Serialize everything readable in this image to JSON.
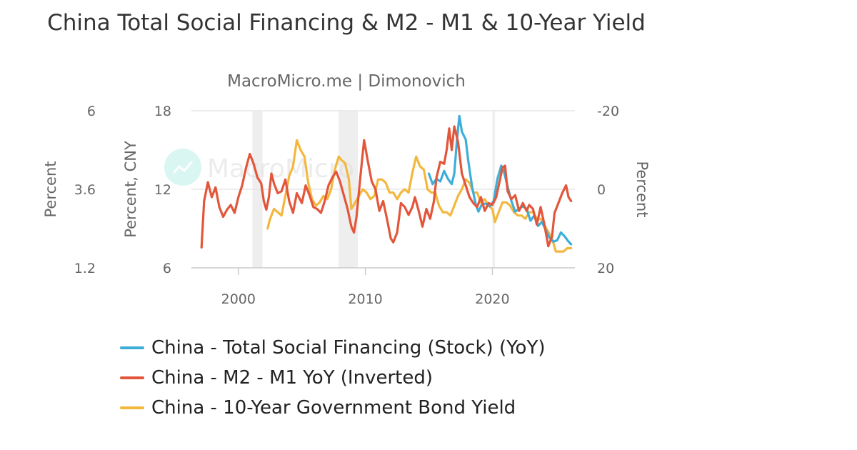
{
  "header": {
    "title": "China Total Social Financing & M2 - M1 & 10-Year Yield",
    "subtitle": "MacroMicro.me | Dimonovich"
  },
  "watermark": {
    "text": "MacroMicro",
    "icon": "chart-trend-icon"
  },
  "colors": {
    "tsf": "#3eaed8",
    "m2m1": "#e2573b",
    "bond": "#f4b73e",
    "grid": "#e6e6e6",
    "shade": "#eeeeee"
  },
  "chart_data": {
    "type": "line",
    "title": "China Total Social Financing & M2 - M1 & 10-Year Yield",
    "subtitle": "MacroMicro.me | Dimonovich",
    "x_range": [
      1996.3,
      2026.5
    ],
    "x_ticks": [
      2000,
      2010,
      2020
    ],
    "axes": {
      "left_outer": {
        "label": "Percent",
        "range": [
          1.2,
          6
        ],
        "ticks": [
          "6",
          "3.6",
          "1.2"
        ]
      },
      "left_inner": {
        "label": "Percent, CNY",
        "range": [
          6,
          18
        ],
        "ticks": [
          "18",
          "12",
          "6"
        ]
      },
      "right": {
        "label": "Percent",
        "range": [
          -20,
          20
        ],
        "inverted": true,
        "ticks": [
          "-20",
          "0",
          "20"
        ]
      }
    },
    "shaded_periods": [
      [
        2001.1,
        2001.9
      ],
      [
        2007.9,
        2009.4
      ],
      [
        2020.0,
        2020.2
      ]
    ],
    "legend_position": "bottom",
    "series": [
      {
        "name": "China - Total Social Financing (Stock) (YoY)",
        "axis": "left_inner",
        "points": [
          [
            2015.0,
            13.2
          ],
          [
            2015.3,
            12.4
          ],
          [
            2015.6,
            12.8
          ],
          [
            2015.9,
            12.6
          ],
          [
            2016.2,
            13.4
          ],
          [
            2016.5,
            12.8
          ],
          [
            2016.8,
            12.4
          ],
          [
            2017.0,
            13.2
          ],
          [
            2017.2,
            15.6
          ],
          [
            2017.4,
            17.6
          ],
          [
            2017.6,
            16.4
          ],
          [
            2017.9,
            15.8
          ],
          [
            2018.1,
            14.2
          ],
          [
            2018.4,
            12.2
          ],
          [
            2018.7,
            10.8
          ],
          [
            2018.9,
            10.3
          ],
          [
            2019.2,
            10.9
          ],
          [
            2019.5,
            10.9
          ],
          [
            2019.8,
            10.7
          ],
          [
            2020.1,
            11.1
          ],
          [
            2020.4,
            12.8
          ],
          [
            2020.7,
            13.8
          ],
          [
            2020.9,
            13.4
          ],
          [
            2021.2,
            12.2
          ],
          [
            2021.5,
            11.1
          ],
          [
            2021.8,
            10.3
          ],
          [
            2022.1,
            10.5
          ],
          [
            2022.4,
            10.7
          ],
          [
            2022.7,
            10.5
          ],
          [
            2023.0,
            9.6
          ],
          [
            2023.3,
            10.0
          ],
          [
            2023.6,
            9.2
          ],
          [
            2023.9,
            9.5
          ],
          [
            2024.2,
            8.9
          ],
          [
            2024.5,
            8.3
          ],
          [
            2024.8,
            8.0
          ],
          [
            2025.1,
            8.1
          ],
          [
            2025.4,
            8.7
          ],
          [
            2025.7,
            8.4
          ],
          [
            2026.0,
            8.0
          ],
          [
            2026.2,
            7.8
          ]
        ]
      },
      {
        "name": "China - M2 - M1 YoY (Inverted)",
        "axis": "right",
        "points": [
          [
            1997.1,
            14.8
          ],
          [
            1997.3,
            3.0
          ],
          [
            1997.6,
            -1.8
          ],
          [
            1997.9,
            2.0
          ],
          [
            1998.2,
            -0.5
          ],
          [
            1998.5,
            4.5
          ],
          [
            1998.8,
            7.0
          ],
          [
            1999.1,
            5.2
          ],
          [
            1999.4,
            4.0
          ],
          [
            1999.7,
            6.0
          ],
          [
            2000.0,
            2.0
          ],
          [
            2000.3,
            -1.0
          ],
          [
            2000.6,
            -5.5
          ],
          [
            2000.9,
            -9.0
          ],
          [
            2001.2,
            -6.5
          ],
          [
            2001.5,
            -3.0
          ],
          [
            2001.8,
            -1.5
          ],
          [
            2002.0,
            3.0
          ],
          [
            2002.2,
            5.2
          ],
          [
            2002.4,
            2.0
          ],
          [
            2002.6,
            -4.0
          ],
          [
            2002.8,
            -1.5
          ],
          [
            2003.1,
            1.0
          ],
          [
            2003.4,
            0.5
          ],
          [
            2003.7,
            -2.5
          ],
          [
            2004.0,
            3.0
          ],
          [
            2004.3,
            6.0
          ],
          [
            2004.6,
            1.0
          ],
          [
            2005.0,
            3.5
          ],
          [
            2005.3,
            -1.0
          ],
          [
            2005.6,
            1.5
          ],
          [
            2005.9,
            4.5
          ],
          [
            2006.2,
            5.0
          ],
          [
            2006.5,
            6.0
          ],
          [
            2006.8,
            3.0
          ],
          [
            2007.1,
            -1.0
          ],
          [
            2007.4,
            -3.0
          ],
          [
            2007.7,
            -4.5
          ],
          [
            2008.0,
            -2.0
          ],
          [
            2008.3,
            1.5
          ],
          [
            2008.6,
            5.0
          ],
          [
            2008.9,
            9.5
          ],
          [
            2009.1,
            11.0
          ],
          [
            2009.3,
            7.0
          ],
          [
            2009.6,
            -3.0
          ],
          [
            2009.9,
            -12.5
          ],
          [
            2010.2,
            -7.0
          ],
          [
            2010.5,
            -2.0
          ],
          [
            2010.8,
            0.0
          ],
          [
            2011.1,
            5.5
          ],
          [
            2011.4,
            3.0
          ],
          [
            2011.7,
            7.5
          ],
          [
            2012.0,
            12.5
          ],
          [
            2012.2,
            13.5
          ],
          [
            2012.5,
            11.0
          ],
          [
            2012.8,
            3.5
          ],
          [
            2013.1,
            4.5
          ],
          [
            2013.4,
            6.5
          ],
          [
            2013.7,
            4.5
          ],
          [
            2013.9,
            2.0
          ],
          [
            2014.2,
            5.5
          ],
          [
            2014.5,
            9.5
          ],
          [
            2014.8,
            5.0
          ],
          [
            2015.1,
            7.5
          ],
          [
            2015.4,
            3.0
          ],
          [
            2015.6,
            -3.0
          ],
          [
            2015.9,
            -7.0
          ],
          [
            2016.2,
            -6.5
          ],
          [
            2016.4,
            -10.0
          ],
          [
            2016.6,
            -15.5
          ],
          [
            2016.8,
            -10.0
          ],
          [
            2017.0,
            -16.0
          ],
          [
            2017.3,
            -12.0
          ],
          [
            2017.6,
            -4.0
          ],
          [
            2017.9,
            -1.0
          ],
          [
            2018.2,
            2.0
          ],
          [
            2018.5,
            3.5
          ],
          [
            2018.8,
            4.5
          ],
          [
            2019.1,
            2.0
          ],
          [
            2019.4,
            5.5
          ],
          [
            2019.7,
            3.5
          ],
          [
            2020.0,
            4.0
          ],
          [
            2020.3,
            2.0
          ],
          [
            2020.6,
            -2.5
          ],
          [
            2020.8,
            -5.5
          ],
          [
            2021.0,
            -6.0
          ],
          [
            2021.2,
            0.5
          ],
          [
            2021.5,
            2.5
          ],
          [
            2021.8,
            1.5
          ],
          [
            2022.1,
            5.5
          ],
          [
            2022.4,
            3.5
          ],
          [
            2022.7,
            5.5
          ],
          [
            2022.9,
            4.0
          ],
          [
            2023.2,
            5.0
          ],
          [
            2023.5,
            9.0
          ],
          [
            2023.8,
            4.5
          ],
          [
            2024.1,
            9.0
          ],
          [
            2024.4,
            14.5
          ],
          [
            2024.7,
            12.0
          ],
          [
            2024.9,
            6.0
          ],
          [
            2025.2,
            3.5
          ],
          [
            2025.5,
            1.0
          ],
          [
            2025.8,
            -1.0
          ],
          [
            2026.0,
            2.0
          ],
          [
            2026.2,
            3.0
          ]
        ]
      },
      {
        "name": "China - 10-Year Government Bond Yield",
        "axis": "left_outer",
        "points": [
          [
            2002.3,
            2.4
          ],
          [
            2002.5,
            2.7
          ],
          [
            2002.8,
            3.0
          ],
          [
            2003.1,
            2.9
          ],
          [
            2003.4,
            2.8
          ],
          [
            2003.7,
            3.4
          ],
          [
            2004.0,
            4.0
          ],
          [
            2004.3,
            4.3
          ],
          [
            2004.6,
            5.1
          ],
          [
            2004.9,
            4.8
          ],
          [
            2005.2,
            4.6
          ],
          [
            2005.5,
            3.8
          ],
          [
            2005.8,
            3.3
          ],
          [
            2006.1,
            3.1
          ],
          [
            2006.4,
            3.2
          ],
          [
            2006.7,
            3.4
          ],
          [
            2007.0,
            3.3
          ],
          [
            2007.3,
            3.6
          ],
          [
            2007.6,
            4.2
          ],
          [
            2007.9,
            4.6
          ],
          [
            2008.1,
            4.5
          ],
          [
            2008.4,
            4.4
          ],
          [
            2008.7,
            3.9
          ],
          [
            2008.9,
            3.0
          ],
          [
            2009.2,
            3.2
          ],
          [
            2009.5,
            3.4
          ],
          [
            2009.8,
            3.6
          ],
          [
            2010.1,
            3.5
          ],
          [
            2010.4,
            3.3
          ],
          [
            2010.7,
            3.4
          ],
          [
            2011.0,
            3.9
          ],
          [
            2011.3,
            3.9
          ],
          [
            2011.6,
            3.8
          ],
          [
            2011.9,
            3.5
          ],
          [
            2012.2,
            3.5
          ],
          [
            2012.5,
            3.3
          ],
          [
            2012.8,
            3.5
          ],
          [
            2013.1,
            3.6
          ],
          [
            2013.4,
            3.5
          ],
          [
            2013.7,
            4.1
          ],
          [
            2014.0,
            4.6
          ],
          [
            2014.3,
            4.3
          ],
          [
            2014.6,
            4.2
          ],
          [
            2014.9,
            3.6
          ],
          [
            2015.2,
            3.5
          ],
          [
            2015.5,
            3.5
          ],
          [
            2015.8,
            3.1
          ],
          [
            2016.1,
            2.9
          ],
          [
            2016.4,
            2.9
          ],
          [
            2016.7,
            2.8
          ],
          [
            2017.0,
            3.1
          ],
          [
            2017.3,
            3.4
          ],
          [
            2017.6,
            3.6
          ],
          [
            2017.9,
            3.9
          ],
          [
            2018.2,
            3.8
          ],
          [
            2018.5,
            3.5
          ],
          [
            2018.8,
            3.5
          ],
          [
            2019.1,
            3.2
          ],
          [
            2019.4,
            3.3
          ],
          [
            2019.7,
            3.1
          ],
          [
            2020.0,
            3.0
          ],
          [
            2020.2,
            2.6
          ],
          [
            2020.5,
            2.9
          ],
          [
            2020.8,
            3.2
          ],
          [
            2021.1,
            3.2
          ],
          [
            2021.4,
            3.1
          ],
          [
            2021.7,
            2.9
          ],
          [
            2022.0,
            2.8
          ],
          [
            2022.3,
            2.8
          ],
          [
            2022.6,
            2.7
          ],
          [
            2022.9,
            2.9
          ],
          [
            2023.2,
            2.9
          ],
          [
            2023.5,
            2.7
          ],
          [
            2023.8,
            2.7
          ],
          [
            2024.1,
            2.5
          ],
          [
            2024.4,
            2.3
          ],
          [
            2024.7,
            2.1
          ],
          [
            2025.0,
            1.7
          ],
          [
            2025.3,
            1.7
          ],
          [
            2025.6,
            1.7
          ],
          [
            2025.9,
            1.8
          ],
          [
            2026.2,
            1.8
          ]
        ]
      }
    ]
  }
}
